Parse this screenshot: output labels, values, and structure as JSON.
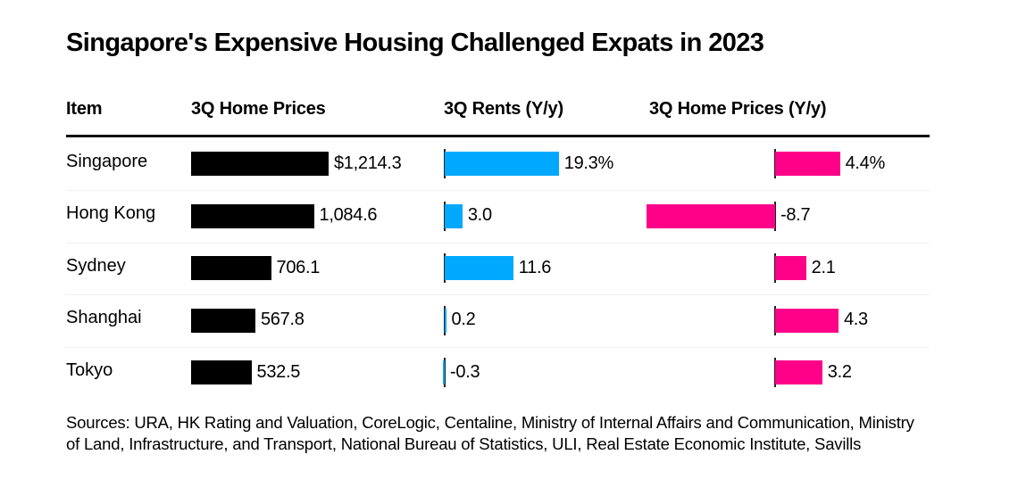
{
  "chart_data": {
    "type": "bar",
    "title": "Singapore's Expensive Housing Challenged Expats in 2023",
    "columns": [
      "Item",
      "3Q Home Prices",
      "3Q Rents (Y/y)",
      "3Q Home Prices (Y/y)"
    ],
    "categories": [
      "Singapore",
      "Hong Kong",
      "Sydney",
      "Shanghai",
      "Tokyo"
    ],
    "series": [
      {
        "name": "3Q Home Prices",
        "values": [
          1214.3,
          1084.6,
          706.1,
          567.8,
          532.5
        ],
        "labels": [
          "$1,214.3",
          "1,084.6",
          "706.1",
          "567.8",
          "532.5"
        ],
        "color": "#000000"
      },
      {
        "name": "3Q Rents (Y/y)",
        "values": [
          19.3,
          3.0,
          11.6,
          0.2,
          -0.3
        ],
        "labels": [
          "19.3%",
          "3.0",
          "11.6",
          "0.2",
          "-0.3"
        ],
        "color": "#00a8ff"
      },
      {
        "name": "3Q Home Prices (Y/y)",
        "values": [
          4.4,
          -8.7,
          2.1,
          4.3,
          3.2
        ],
        "labels": [
          "4.4%",
          "-8.7",
          "2.1",
          "4.3",
          "3.2"
        ],
        "color": "#ff0088"
      }
    ],
    "sources": "Sources: URA, HK Rating and Valuation, CoreLogic, Centaline, Ministry of Internal Affairs and Communication, Ministry of Land, Infrastructure, and Transport, National Bureau of Statistics, ULI, Real Estate Economic Institute, Savills"
  }
}
